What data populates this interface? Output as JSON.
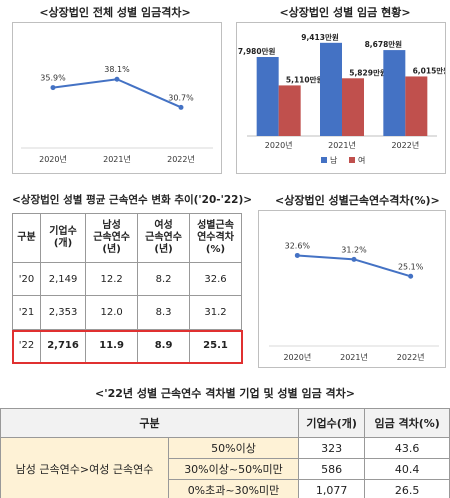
{
  "charts": {
    "c1_title": "<상장법인 전체 성별 임금격차>",
    "c2_title": "<상장법인 성별 임금 현황>",
    "c3_title": "<상장법인 성별 평균 근속연수 변화 추이('20-'22)>",
    "c4_title": "<상장법인 성별근속연수격차(%)>",
    "c5_title": "<'22년 성별 근속연수 격차별 기업 및 성별 임금 격차>"
  },
  "chart_data": [
    {
      "type": "line",
      "title": "<상장법인 전체 성별 임금격차>",
      "categories": [
        "2020년",
        "2021년",
        "2022년"
      ],
      "values": [
        35.9,
        38.1,
        30.7
      ],
      "value_labels": [
        "35.9%",
        "38.1%",
        "30.7%"
      ],
      "ylim": [
        20,
        45
      ],
      "color": "#4472c4"
    },
    {
      "type": "bar",
      "title": "<상장법인 성별 임금 현황>",
      "categories": [
        "2020년",
        "2021년",
        "2022년"
      ],
      "series": [
        {
          "name": "남",
          "values": [
            7980,
            9413,
            8678
          ],
          "labels": [
            "7,980만원",
            "9,413만원",
            "8,678만원"
          ],
          "color": "#4472c4"
        },
        {
          "name": "여",
          "values": [
            5110,
            5829,
            6015
          ],
          "labels": [
            "5,110만원",
            "5,829만원",
            "6,015만원"
          ],
          "color": "#c0504d"
        }
      ],
      "ylim": [
        0,
        10000
      ]
    },
    {
      "type": "table",
      "title": "<상장법인 성별 평균 근속연수 변화 추이('20-'22)>",
      "columns": [
        "구분",
        "기업수\n(개)",
        "남성\n근속연수\n(년)",
        "여성\n근속연수\n(년)",
        "성별근속\n연수격차\n(%)"
      ],
      "rows": [
        [
          "'20",
          "2,149",
          "12.2",
          "8.2",
          "32.6"
        ],
        [
          "'21",
          "2,353",
          "12.0",
          "8.3",
          "31.2"
        ],
        [
          "'22",
          "2,716",
          "11.9",
          "8.9",
          "25.1"
        ]
      ]
    },
    {
      "type": "line",
      "title": "<상장법인 성별근속연수격차(%)>",
      "categories": [
        "2020년",
        "2021년",
        "2022년"
      ],
      "values": [
        32.6,
        31.2,
        25.1
      ],
      "value_labels": [
        "32.6%",
        "31.2%",
        "25.1%"
      ],
      "ylim": [
        0,
        45
      ],
      "color": "#4472c4"
    },
    {
      "type": "table",
      "title": "<'22년 성별 근속연수 격차별 기업 및 성별 임금 격차>",
      "columns": [
        "구분",
        "기업수(개)",
        "임금 격차(%)"
      ],
      "group_label": "남성 근속연수>여성 근속연수",
      "rows": [
        [
          "50%이상",
          "323",
          "43.6"
        ],
        [
          "30%이상~50%미만",
          "586",
          "40.4"
        ],
        [
          "0%초과~30%미만",
          "1,077",
          "26.5"
        ]
      ]
    }
  ]
}
